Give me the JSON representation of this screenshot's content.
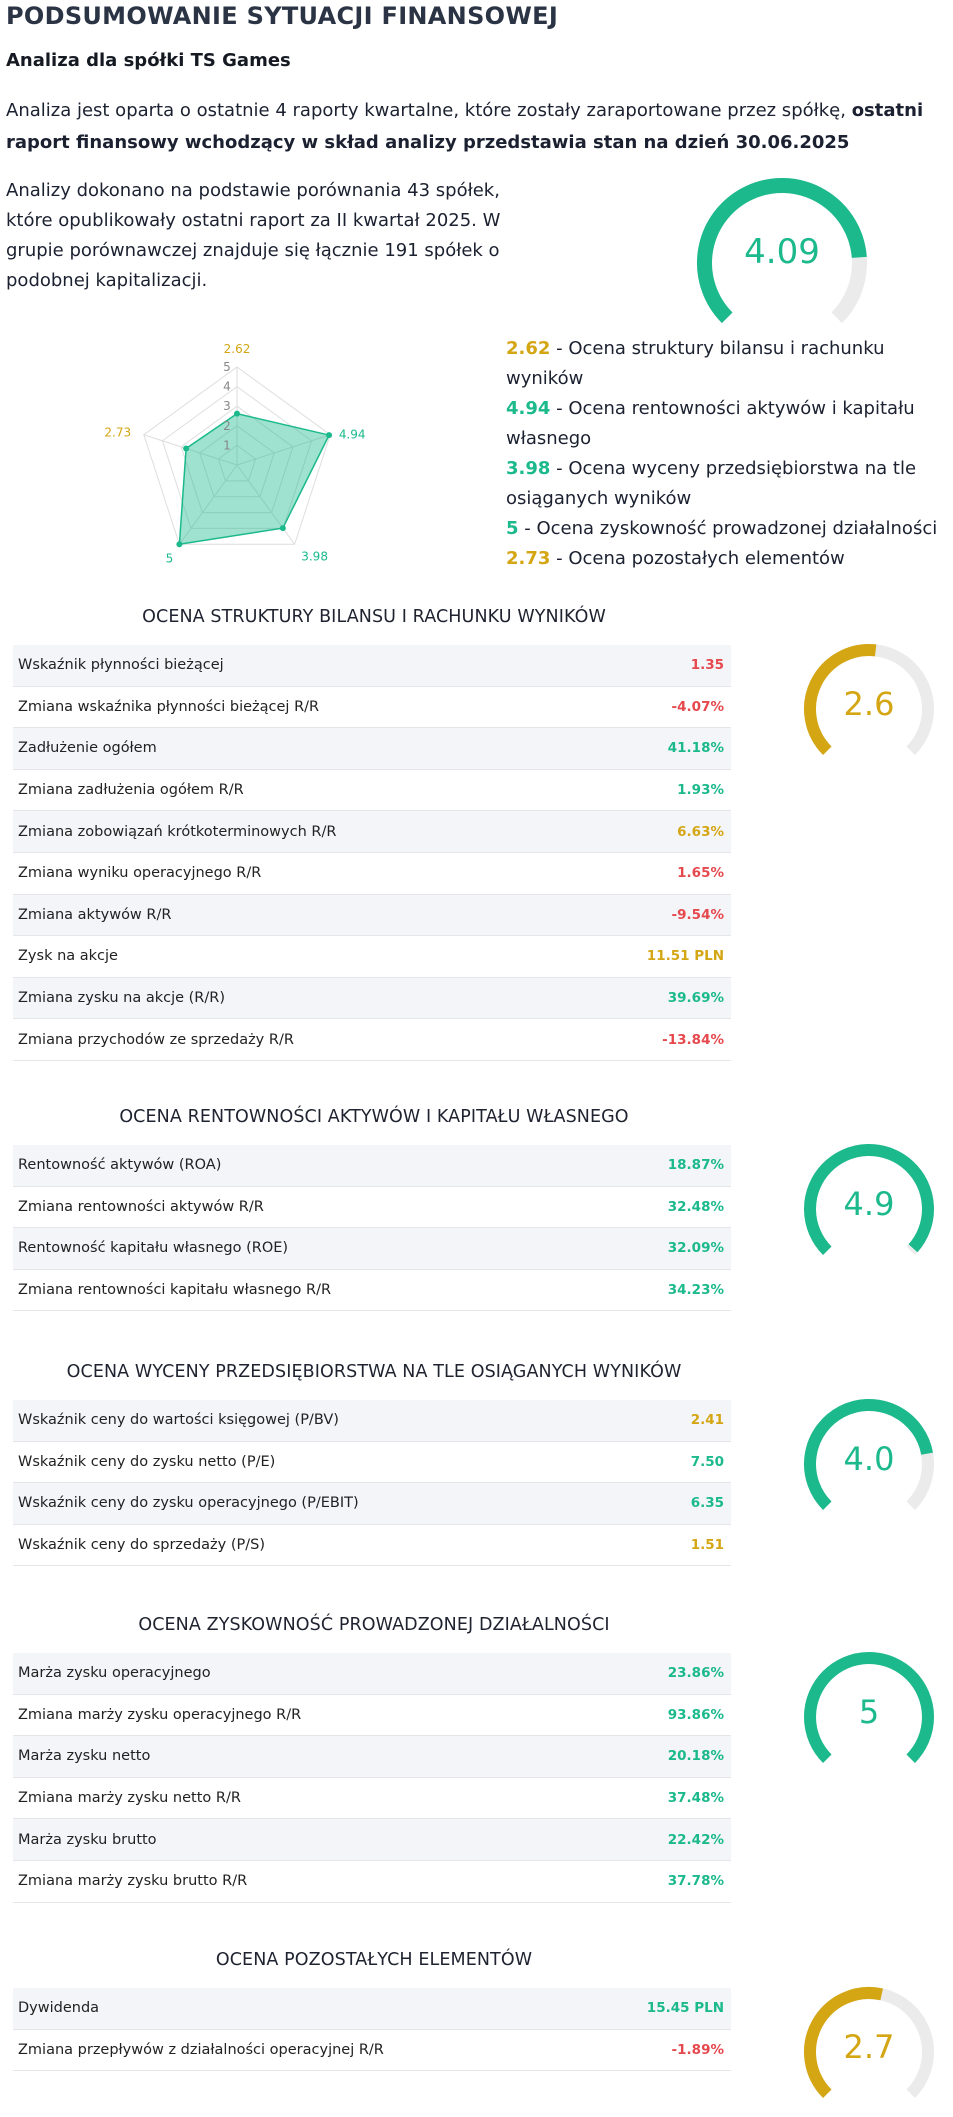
{
  "colors": {
    "green": "#1bb98c",
    "yellow": "#d4a614",
    "red": "#e5484d",
    "track": "#ebebeb"
  },
  "header": {
    "title": "PODSUMOWANIE SYTUACJI FINANSOWEJ",
    "subtitle": "Analiza dla spółki TS Games",
    "intro_text": "Analiza jest oparta o ostatnie 4 raporty kwartalne, które zostały zaraportowane przez spółkę, ",
    "intro_bold": "ostatni raport finansowy wchodzący w skład analizy przedstawia stan na dzień 30.06.2025",
    "description": "Analizy dokonano na podstawie porównania 43 spółek, które opublikowały ostatni raport za II kwartał 2025. W grupie porównawczej znajduje się łącznie 191 spółek o podobnej kapitalizacji."
  },
  "overall_score": {
    "value": "4.09",
    "fraction": 0.818,
    "color": "green"
  },
  "radar": {
    "scale_labels": [
      "1",
      "2",
      "3",
      "4",
      "5"
    ],
    "max": 5,
    "axes": [
      {
        "value": 2.62,
        "label": "2.62",
        "color": "yellow"
      },
      {
        "value": 4.94,
        "label": "4.94",
        "color": "green"
      },
      {
        "value": 3.98,
        "label": "3.98",
        "color": "green"
      },
      {
        "value": 5,
        "label": "5",
        "color": "green"
      },
      {
        "value": 2.73,
        "label": "2.73",
        "color": "yellow"
      }
    ]
  },
  "legend": [
    {
      "num": "2.62",
      "text": " - Ocena struktury bilansu i rachunku wyników",
      "color": "yellow"
    },
    {
      "num": "4.94",
      "text": " - Ocena rentowności aktywów i kapitału własnego",
      "color": "green"
    },
    {
      "num": "3.98",
      "text": " - Ocena wyceny przedsiębiorstwa na tle osiąganych wyników",
      "color": "green"
    },
    {
      "num": "5",
      "text": " - Ocena zyskowność prowadzonej działalności",
      "color": "green"
    },
    {
      "num": "2.73",
      "text": " - Ocena pozostałych elementów",
      "color": "yellow"
    }
  ],
  "sections": [
    {
      "title": "OCENA STRUKTURY BILANSU I RACHUNKU WYNIKÓW",
      "score": {
        "value": "2.6",
        "fraction": 0.524,
        "color": "yellow"
      },
      "rows": [
        {
          "label": "Wskaźnik płynności bieżącej",
          "value": "1.35",
          "color": "red"
        },
        {
          "label": "Zmiana wskaźnika płynności bieżącej R/R",
          "value": "-4.07%",
          "color": "red"
        },
        {
          "label": "Zadłużenie ogółem",
          "value": "41.18%",
          "color": "green"
        },
        {
          "label": "Zmiana zadłużenia ogółem R/R",
          "value": "1.93%",
          "color": "green"
        },
        {
          "label": "Zmiana zobowiązań krótkoterminowych R/R",
          "value": "6.63%",
          "color": "yellow"
        },
        {
          "label": "Zmiana wyniku operacyjnego R/R",
          "value": "1.65%",
          "color": "red"
        },
        {
          "label": "Zmiana aktywów R/R",
          "value": "-9.54%",
          "color": "red"
        },
        {
          "label": "Zysk na akcje",
          "value": "11.51 PLN",
          "color": "yellow"
        },
        {
          "label": "Zmiana zysku na akcje (R/R)",
          "value": "39.69%",
          "color": "green"
        },
        {
          "label": "Zmiana przychodów ze sprzedaży R/R",
          "value": "-13.84%",
          "color": "red"
        }
      ]
    },
    {
      "title": "OCENA RENTOWNOŚCI AKTYWÓW I KAPITAŁU WŁASNEGO",
      "score": {
        "value": "4.9",
        "fraction": 0.988,
        "color": "green"
      },
      "rows": [
        {
          "label": "Rentowność aktywów (ROA)",
          "value": "18.87%",
          "color": "green"
        },
        {
          "label": "Zmiana rentowności aktywów R/R",
          "value": "32.48%",
          "color": "green"
        },
        {
          "label": "Rentowność kapitału własnego (ROE)",
          "value": "32.09%",
          "color": "green"
        },
        {
          "label": "Zmiana rentowności kapitału własnego R/R",
          "value": "34.23%",
          "color": "green"
        }
      ]
    },
    {
      "title": "OCENA WYCENY PRZEDSIĘBIORSTWA NA TLE OSIĄGANYCH WYNIKÓW",
      "score": {
        "value": "4.0",
        "fraction": 0.796,
        "color": "green"
      },
      "rows": [
        {
          "label": "Wskaźnik ceny do wartości księgowej (P/BV)",
          "value": "2.41",
          "color": "yellow"
        },
        {
          "label": "Wskaźnik ceny do zysku netto (P/E)",
          "value": "7.50",
          "color": "green"
        },
        {
          "label": "Wskaźnik ceny do zysku operacyjnego (P/EBIT)",
          "value": "6.35",
          "color": "green"
        },
        {
          "label": "Wskaźnik ceny do sprzedaży (P/S)",
          "value": "1.51",
          "color": "yellow"
        }
      ]
    },
    {
      "title": "OCENA ZYSKOWNOŚĆ PROWADZONEJ DZIAŁALNOŚCI",
      "score": {
        "value": "5",
        "fraction": 1.0,
        "color": "green"
      },
      "rows": [
        {
          "label": "Marża zysku operacyjnego",
          "value": "23.86%",
          "color": "green"
        },
        {
          "label": "Zmiana marży zysku operacyjnego R/R",
          "value": "93.86%",
          "color": "green"
        },
        {
          "label": "Marża zysku netto",
          "value": "20.18%",
          "color": "green"
        },
        {
          "label": "Zmiana marży zysku netto R/R",
          "value": "37.48%",
          "color": "green"
        },
        {
          "label": "Marża zysku brutto",
          "value": "22.42%",
          "color": "green"
        },
        {
          "label": "Zmiana marży zysku brutto R/R",
          "value": "37.78%",
          "color": "green"
        }
      ]
    },
    {
      "title": "OCENA POZOSTAŁYCH ELEMENTÓW",
      "score": {
        "value": "2.7",
        "fraction": 0.546,
        "color": "yellow"
      },
      "rows": [
        {
          "label": "Dywidenda",
          "value": "15.45 PLN",
          "color": "green"
        },
        {
          "label": "Zmiana przepływów z działalności operacyjnej R/R",
          "value": "-1.89%",
          "color": "red"
        }
      ]
    }
  ]
}
